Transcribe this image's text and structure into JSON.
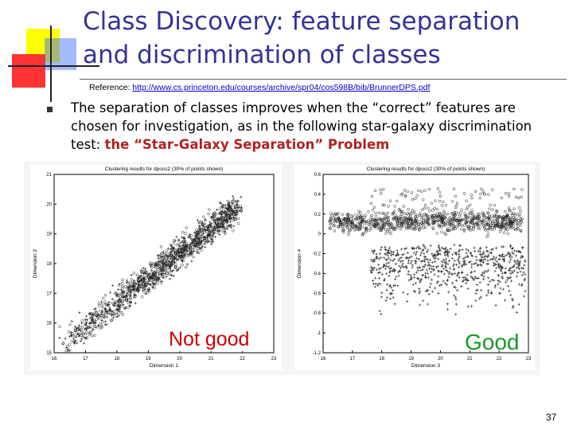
{
  "slide": {
    "title_line1": "Class Discovery:  feature separation",
    "title_line2": "and discrimination of classes",
    "reference_label": "Reference:",
    "reference_url": "http://www.cs.princeton.edu/courses/archive/spr04/cos598B/bib/BrunnerDPS.pdf",
    "bullet_text": "The separation of classes improves when the “correct” features are chosen for investigation, as in the following star-galaxy discrimination test:  ",
    "bullet_highlight": "the “Star-Galaxy Separation” Problem",
    "page_number": "37"
  },
  "figure": {
    "left_plot": {
      "title": "Clustering results for dposs2 (30% of points shown)",
      "xlabel": "Dimension 1",
      "ylabel": "Dimension 2",
      "x_ticks": [
        "16",
        "17",
        "18",
        "19",
        "20",
        "21",
        "22",
        "23"
      ],
      "y_ticks": [
        "15",
        "16",
        "17",
        "18",
        "19",
        "20",
        "21"
      ],
      "verdict": "Not  good"
    },
    "right_plot": {
      "title": "Clustering results for dposs2 (30% of points shown)",
      "xlabel": "Dimension 3",
      "ylabel": "Dimension 4",
      "x_ticks": [
        "16",
        "17",
        "18",
        "19",
        "20",
        "21",
        "22",
        "23"
      ],
      "y_ticks": [
        "0.6",
        "0.4",
        "0.2",
        "0",
        "-0.2",
        "-0.4",
        "-0.6",
        "-0.8",
        "-1",
        "-1.2"
      ],
      "verdict": "Good"
    },
    "colors": {
      "title": "#333399",
      "not_good": "#cc0000",
      "good": "#1a9a2a",
      "highlight": "#b22222"
    }
  }
}
